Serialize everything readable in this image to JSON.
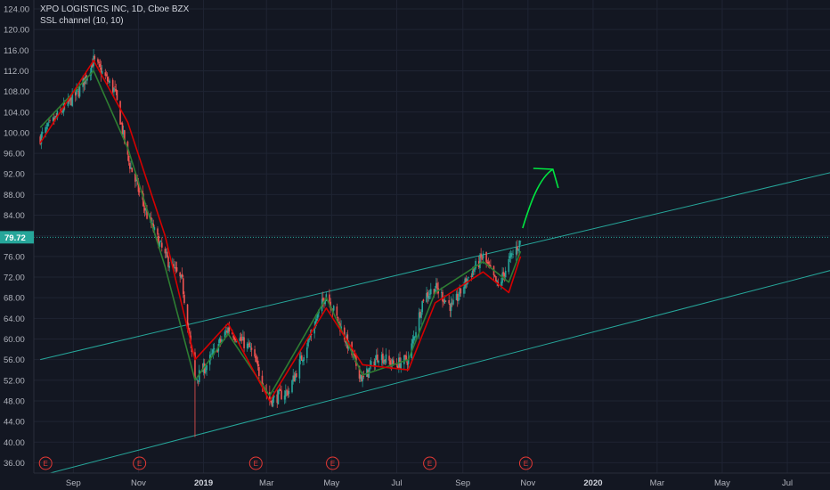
{
  "header": {
    "symbol_line": "XPO LOGISTICS INC, 1D, Cboe BZX",
    "indicator_line": "SSL channel (10, 10)"
  },
  "colors": {
    "background": "#131722",
    "grid": "#1f2433",
    "candle_up": "#26a69a",
    "candle_down": "#ef5350",
    "ssl_up": "#2e7d32",
    "ssl_down": "#d50000",
    "trendline": "#26a69a",
    "price_tag": "#26a69a",
    "drawing": "#00e640",
    "earnings": "#e53935"
  },
  "chart_data": {
    "type": "line",
    "title": "XPO LOGISTICS INC, 1D, Cboe BZX",
    "ylim": [
      34,
      124
    ],
    "y_ticks": [
      36,
      40,
      44,
      48,
      52,
      56,
      60,
      64,
      68,
      72,
      76,
      80,
      84,
      88,
      92,
      96,
      100,
      104,
      108,
      112,
      116,
      120,
      124
    ],
    "y_tick_labels": [
      "36.00",
      "40.00",
      "44.00",
      "48.00",
      "52.00",
      "56.00",
      "60.00",
      "64.00",
      "68.00",
      "72.00",
      "76.00",
      "80.00",
      "84.00",
      "88.00",
      "92.00",
      "96.00",
      "100.00",
      "104.00",
      "108.00",
      "112.00",
      "116.00",
      "120.00",
      "124.00"
    ],
    "x_labels": [
      "Sep",
      "Nov",
      "2019",
      "Mar",
      "May",
      "Jul",
      "Sep",
      "Nov",
      "2020",
      "Mar",
      "May",
      "Jul"
    ],
    "current_price_label": "79.72",
    "current_price": 79.72,
    "grid": true,
    "series": [
      {
        "name": "price",
        "x": [
          "2018-08-01",
          "2018-08-20",
          "2018-09-06",
          "2018-09-20",
          "2018-10-10",
          "2018-10-22",
          "2018-11-09",
          "2018-11-26",
          "2018-12-12",
          "2018-12-24",
          "2019-01-04",
          "2019-01-24",
          "2019-02-14",
          "2019-03-04",
          "2019-03-22",
          "2019-04-10",
          "2019-04-26",
          "2019-05-10",
          "2019-05-30",
          "2019-06-14",
          "2019-06-28",
          "2019-07-12",
          "2019-07-26",
          "2019-08-06",
          "2019-08-22",
          "2019-09-06",
          "2019-09-20",
          "2019-10-04",
          "2019-10-14",
          "2019-10-25"
        ],
        "values": [
          99,
          104,
          108,
          114,
          108,
          95,
          84,
          76,
          71,
          52,
          55,
          62,
          58,
          48,
          50,
          60,
          69,
          62,
          52,
          57,
          55,
          56,
          68,
          70,
          66,
          72,
          76,
          70,
          75,
          79
        ]
      },
      {
        "name": "SSL channel (10, 10) up",
        "x": [
          "2018-08-01",
          "2018-09-20",
          "2018-10-22",
          "2018-11-26",
          "2018-12-24",
          "2019-01-24",
          "2019-03-04",
          "2019-04-26",
          "2019-05-30",
          "2019-07-12",
          "2019-08-06",
          "2019-09-20",
          "2019-10-14",
          "2019-10-25"
        ],
        "values": [
          101,
          112,
          97,
          74,
          52,
          61,
          49,
          68,
          53,
          56,
          69,
          75,
          71,
          77
        ]
      },
      {
        "name": "SSL channel (10, 10) down",
        "x": [
          "2018-08-01",
          "2018-09-20",
          "2018-10-22",
          "2018-11-26",
          "2018-12-24",
          "2019-01-24",
          "2019-03-04",
          "2019-04-26",
          "2019-05-30",
          "2019-07-12",
          "2019-08-06",
          "2019-09-20",
          "2019-10-14",
          "2019-10-25"
        ],
        "values": [
          98,
          114,
          102,
          80,
          56,
          63,
          48,
          66,
          55,
          54,
          67,
          73,
          69,
          76
        ]
      }
    ],
    "trendlines": [
      {
        "from": [
          "2018-08-01",
          56.0
        ],
        "to": [
          "2020-09-15",
          94.0
        ]
      },
      {
        "from": [
          "2018-08-01",
          33.5
        ],
        "to": [
          "2020-09-15",
          75.2
        ]
      }
    ],
    "earnings_markers": [
      "2018-08-06",
      "2018-11-02",
      "2019-02-19",
      "2019-05-02",
      "2019-08-01",
      "2019-10-30"
    ],
    "earnings_label": "E"
  }
}
